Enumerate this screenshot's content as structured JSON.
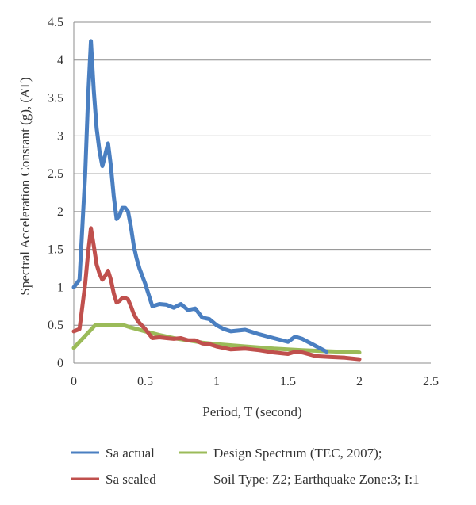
{
  "chart_data": {
    "type": "line",
    "title": "",
    "xlabel": "Period, T (second)",
    "ylabel": "Spectral Acceleration Constant (g), (AT)",
    "xlim": [
      0,
      2.5
    ],
    "ylim": [
      0,
      4.5
    ],
    "x_ticks": [
      "0",
      "0.5",
      "1",
      "1.5",
      "2",
      "2.5"
    ],
    "y_ticks": [
      "0",
      "0.5",
      "1",
      "1.5",
      "2",
      "2.5",
      "3",
      "3.5",
      "4",
      "4.5"
    ],
    "grid": "horizontal",
    "legend_position": "bottom",
    "series": [
      {
        "name": "Sa actual",
        "color": "#4a7fc1",
        "points": [
          [
            0,
            1.0
          ],
          [
            0.04,
            1.1
          ],
          [
            0.08,
            2.5
          ],
          [
            0.1,
            3.5
          ],
          [
            0.12,
            4.25
          ],
          [
            0.14,
            3.6
          ],
          [
            0.16,
            3.1
          ],
          [
            0.18,
            2.8
          ],
          [
            0.2,
            2.6
          ],
          [
            0.22,
            2.75
          ],
          [
            0.24,
            2.9
          ],
          [
            0.26,
            2.6
          ],
          [
            0.28,
            2.2
          ],
          [
            0.3,
            1.9
          ],
          [
            0.32,
            1.95
          ],
          [
            0.34,
            2.05
          ],
          [
            0.36,
            2.05
          ],
          [
            0.38,
            2.0
          ],
          [
            0.4,
            1.8
          ],
          [
            0.42,
            1.55
          ],
          [
            0.44,
            1.38
          ],
          [
            0.46,
            1.25
          ],
          [
            0.5,
            1.05
          ],
          [
            0.55,
            0.75
          ],
          [
            0.6,
            0.78
          ],
          [
            0.65,
            0.77
          ],
          [
            0.7,
            0.73
          ],
          [
            0.75,
            0.78
          ],
          [
            0.8,
            0.7
          ],
          [
            0.85,
            0.72
          ],
          [
            0.9,
            0.6
          ],
          [
            0.95,
            0.58
          ],
          [
            1.0,
            0.5
          ],
          [
            1.05,
            0.45
          ],
          [
            1.1,
            0.42
          ],
          [
            1.2,
            0.44
          ],
          [
            1.3,
            0.38
          ],
          [
            1.4,
            0.33
          ],
          [
            1.5,
            0.28
          ],
          [
            1.55,
            0.35
          ],
          [
            1.6,
            0.32
          ],
          [
            1.7,
            0.22
          ],
          [
            1.77,
            0.15
          ]
        ]
      },
      {
        "name": "Sa scaled",
        "color": "#c0504d",
        "points": [
          [
            0,
            0.42
          ],
          [
            0.04,
            0.45
          ],
          [
            0.08,
            1.05
          ],
          [
            0.1,
            1.45
          ],
          [
            0.12,
            1.78
          ],
          [
            0.14,
            1.55
          ],
          [
            0.16,
            1.3
          ],
          [
            0.18,
            1.18
          ],
          [
            0.2,
            1.1
          ],
          [
            0.22,
            1.15
          ],
          [
            0.24,
            1.22
          ],
          [
            0.26,
            1.1
          ],
          [
            0.28,
            0.92
          ],
          [
            0.3,
            0.8
          ],
          [
            0.32,
            0.82
          ],
          [
            0.34,
            0.86
          ],
          [
            0.36,
            0.86
          ],
          [
            0.38,
            0.84
          ],
          [
            0.4,
            0.75
          ],
          [
            0.42,
            0.65
          ],
          [
            0.44,
            0.58
          ],
          [
            0.46,
            0.53
          ],
          [
            0.5,
            0.45
          ],
          [
            0.55,
            0.33
          ],
          [
            0.6,
            0.34
          ],
          [
            0.65,
            0.33
          ],
          [
            0.7,
            0.32
          ],
          [
            0.75,
            0.33
          ],
          [
            0.8,
            0.3
          ],
          [
            0.85,
            0.3
          ],
          [
            0.9,
            0.26
          ],
          [
            0.95,
            0.25
          ],
          [
            1.0,
            0.22
          ],
          [
            1.05,
            0.2
          ],
          [
            1.1,
            0.18
          ],
          [
            1.2,
            0.19
          ],
          [
            1.3,
            0.17
          ],
          [
            1.4,
            0.14
          ],
          [
            1.5,
            0.12
          ],
          [
            1.55,
            0.15
          ],
          [
            1.6,
            0.14
          ],
          [
            1.7,
            0.09
          ],
          [
            1.8,
            0.08
          ],
          [
            1.9,
            0.07
          ],
          [
            2.0,
            0.05
          ]
        ]
      },
      {
        "name": "Design Spectrum (TEC, 2007);",
        "color": "#9bbb59",
        "points": [
          [
            0,
            0.2
          ],
          [
            0.05,
            0.3
          ],
          [
            0.1,
            0.4
          ],
          [
            0.15,
            0.5
          ],
          [
            0.2,
            0.5
          ],
          [
            0.3,
            0.5
          ],
          [
            0.35,
            0.5
          ],
          [
            0.4,
            0.47
          ],
          [
            0.5,
            0.42
          ],
          [
            0.6,
            0.37
          ],
          [
            0.7,
            0.33
          ],
          [
            0.8,
            0.3
          ],
          [
            0.9,
            0.27
          ],
          [
            1.0,
            0.25
          ],
          [
            1.2,
            0.22
          ],
          [
            1.4,
            0.19
          ],
          [
            1.6,
            0.17
          ],
          [
            1.8,
            0.155
          ],
          [
            2.0,
            0.14
          ]
        ]
      }
    ],
    "legend_extra_line": "Soil Type: Z2; Earthquake Zone:3; I:1"
  }
}
